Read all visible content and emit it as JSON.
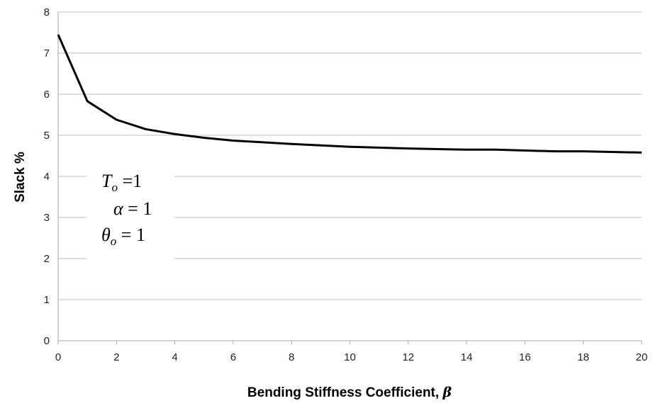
{
  "chart_data": {
    "type": "line",
    "title": "",
    "xlabel": "Bending Stiffness Coefficient, ",
    "xlabel_symbol": "β",
    "ylabel": "Slack  %",
    "xlim": [
      0,
      20
    ],
    "ylim": [
      0,
      8
    ],
    "x_ticks": [
      "0",
      "2",
      "4",
      "6",
      "8",
      "10",
      "12",
      "14",
      "16",
      "18",
      "20"
    ],
    "y_ticks": [
      "0",
      "1",
      "2",
      "3",
      "4",
      "5",
      "6",
      "7",
      "8"
    ],
    "grid": "horizontal",
    "line_color": "#000000",
    "series": [
      {
        "x": [
          0,
          1,
          2,
          3,
          4,
          5,
          6,
          8,
          10,
          12,
          14,
          15,
          17,
          18,
          20
        ],
        "values": [
          7.45,
          5.83,
          5.38,
          5.15,
          5.03,
          4.94,
          4.87,
          4.79,
          4.72,
          4.68,
          4.65,
          4.65,
          4.61,
          4.61,
          4.58
        ]
      }
    ],
    "annotations": [
      {
        "symbol": "T",
        "sub": "o",
        "text": " =1"
      },
      {
        "symbol": "α",
        "sub": "",
        "text": " = 1"
      },
      {
        "symbol": "θ",
        "sub": "o",
        "text": " = 1"
      }
    ]
  }
}
